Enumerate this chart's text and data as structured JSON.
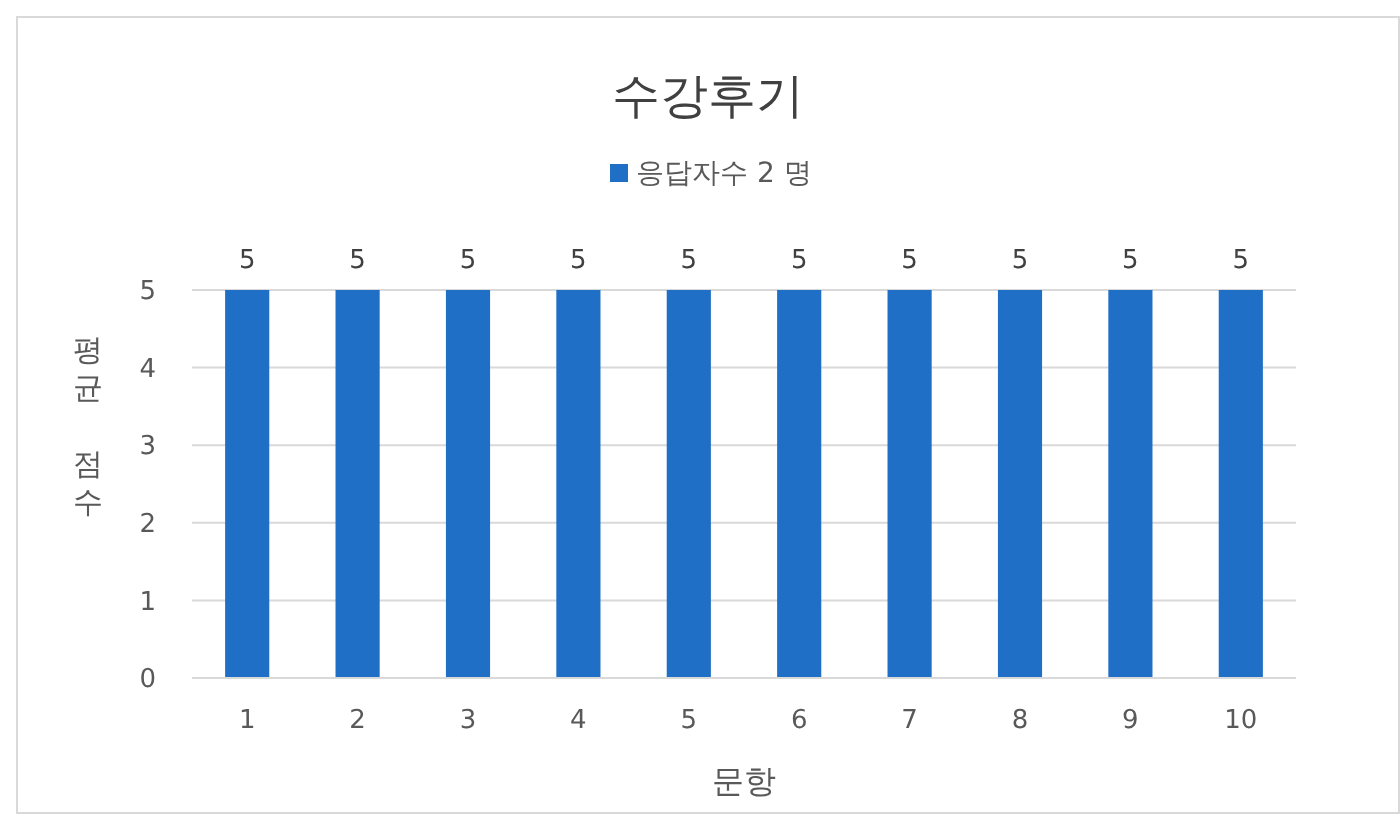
{
  "chart_data": {
    "type": "bar",
    "title": "수강후기",
    "xlabel": "문항",
    "ylabel": "평균 점수",
    "categories": [
      "1",
      "2",
      "3",
      "4",
      "5",
      "6",
      "7",
      "8",
      "9",
      "10"
    ],
    "series": [
      {
        "name": "응답자수 2 명",
        "color": "#1f6fc6",
        "values": [
          5,
          5,
          5,
          5,
          5,
          5,
          5,
          5,
          5,
          5
        ]
      }
    ],
    "ylim": [
      0,
      5
    ],
    "yticks": [
      0,
      1,
      2,
      3,
      4,
      5
    ],
    "grid": "y",
    "legend": "top",
    "data_labels": true
  }
}
